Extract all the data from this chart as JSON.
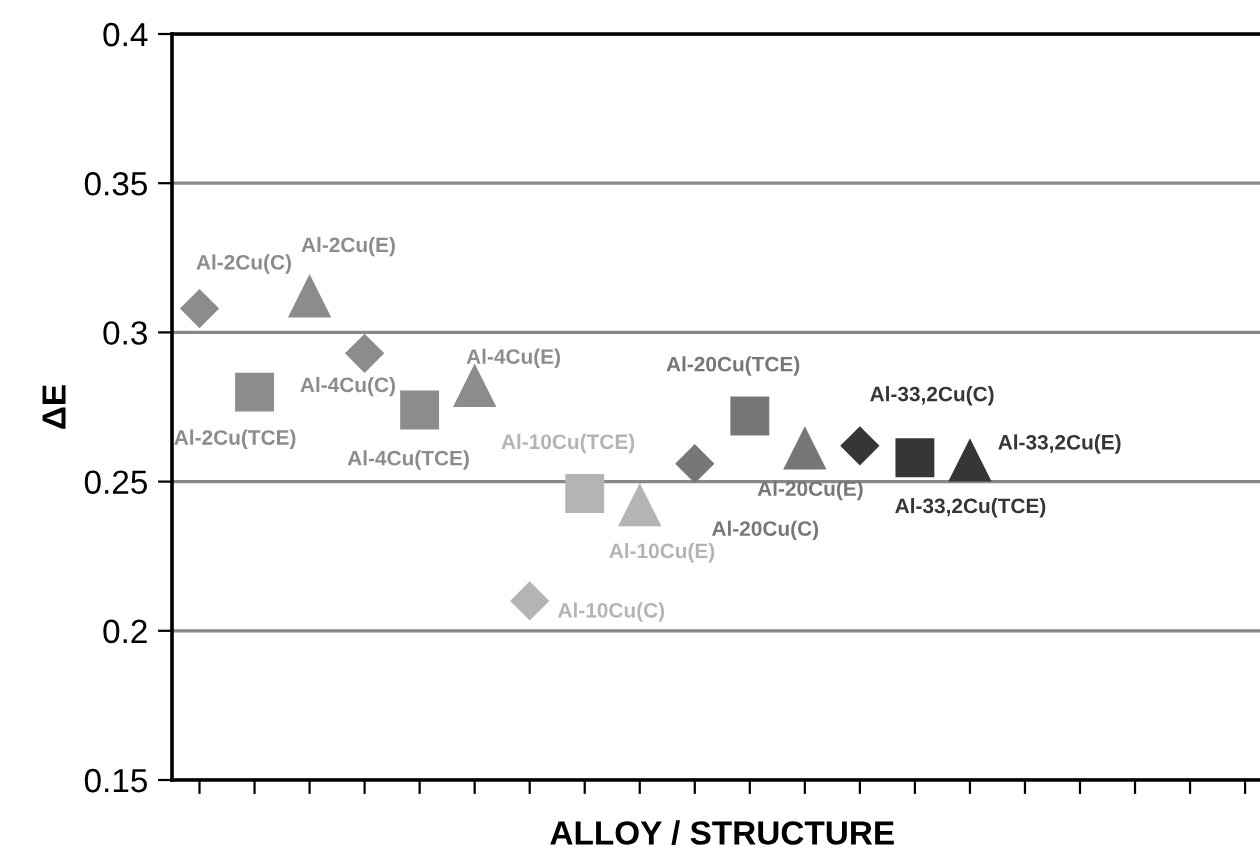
{
  "chart_data": {
    "type": "scatter",
    "xlabel": "ALLOY / STRUCTURE",
    "ylabel": "ΔE",
    "categories": [
      null,
      null,
      null,
      null,
      null,
      null,
      null,
      null,
      null,
      null,
      null,
      null,
      null,
      null,
      null,
      null,
      null,
      null,
      null,
      null
    ],
    "ylim": [
      0.15,
      0.4
    ],
    "yticks": [
      0.15,
      0.2,
      0.25,
      0.3,
      0.35,
      0.4
    ],
    "grid": "y",
    "legend": false,
    "series": [
      {
        "name": "Al-2Cu(C)",
        "color": "#8c8c8c",
        "marker": "diamond",
        "values": [
          0.308,
          null,
          null,
          null,
          null,
          null,
          null,
          null,
          null,
          null,
          null,
          null,
          null,
          null,
          null,
          null,
          null,
          null,
          null,
          null
        ]
      },
      {
        "name": "Al-2Cu(TCE)",
        "color": "#8c8c8c",
        "marker": "square",
        "values": [
          null,
          0.28,
          null,
          null,
          null,
          null,
          null,
          null,
          null,
          null,
          null,
          null,
          null,
          null,
          null,
          null,
          null,
          null,
          null,
          null
        ]
      },
      {
        "name": "Al-2Cu(E)",
        "color": "#8c8c8c",
        "marker": "triangle",
        "values": [
          null,
          null,
          0.312,
          null,
          null,
          null,
          null,
          null,
          null,
          null,
          null,
          null,
          null,
          null,
          null,
          null,
          null,
          null,
          null,
          null
        ]
      },
      {
        "name": "Al-4Cu(C)",
        "color": "#8c8c8c",
        "marker": "diamond",
        "values": [
          null,
          null,
          null,
          0.293,
          null,
          null,
          null,
          null,
          null,
          null,
          null,
          null,
          null,
          null,
          null,
          null,
          null,
          null,
          null,
          null
        ]
      },
      {
        "name": "Al-4Cu(TCE)",
        "color": "#8c8c8c",
        "marker": "square",
        "values": [
          null,
          null,
          null,
          null,
          0.274,
          null,
          null,
          null,
          null,
          null,
          null,
          null,
          null,
          null,
          null,
          null,
          null,
          null,
          null,
          null
        ]
      },
      {
        "name": "Al-4Cu(E)",
        "color": "#8c8c8c",
        "marker": "triangle",
        "values": [
          null,
          null,
          null,
          null,
          null,
          0.282,
          null,
          null,
          null,
          null,
          null,
          null,
          null,
          null,
          null,
          null,
          null,
          null,
          null,
          null
        ]
      },
      {
        "name": "Al-10Cu(C)",
        "color": "#b4b4b4",
        "marker": "diamond",
        "values": [
          null,
          null,
          null,
          null,
          null,
          null,
          0.21,
          null,
          null,
          null,
          null,
          null,
          null,
          null,
          null,
          null,
          null,
          null,
          null,
          null
        ]
      },
      {
        "name": "Al-10Cu(TCE)",
        "color": "#b4b4b4",
        "marker": "square",
        "values": [
          null,
          null,
          null,
          null,
          null,
          null,
          null,
          0.246,
          null,
          null,
          null,
          null,
          null,
          null,
          null,
          null,
          null,
          null,
          null,
          null
        ]
      },
      {
        "name": "Al-10Cu(E)",
        "color": "#b4b4b4",
        "marker": "triangle",
        "values": [
          null,
          null,
          null,
          null,
          null,
          null,
          null,
          null,
          0.242,
          null,
          null,
          null,
          null,
          null,
          null,
          null,
          null,
          null,
          null,
          null
        ]
      },
      {
        "name": "Al-20Cu(C)",
        "color": "#777777",
        "marker": "diamond",
        "values": [
          null,
          null,
          null,
          null,
          null,
          null,
          null,
          null,
          null,
          0.256,
          null,
          null,
          null,
          null,
          null,
          null,
          null,
          null,
          null,
          null
        ]
      },
      {
        "name": "Al-20Cu(TCE)",
        "color": "#777777",
        "marker": "square",
        "values": [
          null,
          null,
          null,
          null,
          null,
          null,
          null,
          null,
          null,
          null,
          0.272,
          null,
          null,
          null,
          null,
          null,
          null,
          null,
          null,
          null
        ]
      },
      {
        "name": "Al-20Cu(E)",
        "color": "#777777",
        "marker": "triangle",
        "values": [
          null,
          null,
          null,
          null,
          null,
          null,
          null,
          null,
          null,
          null,
          null,
          0.261,
          null,
          null,
          null,
          null,
          null,
          null,
          null,
          null
        ]
      },
      {
        "name": "Al-33,2Cu(C)",
        "color": "#363636",
        "marker": "diamond",
        "values": [
          null,
          null,
          null,
          null,
          null,
          null,
          null,
          null,
          null,
          null,
          null,
          null,
          0.262,
          null,
          null,
          null,
          null,
          null,
          null,
          null
        ]
      },
      {
        "name": "Al-33,2Cu(TCE)",
        "color": "#363636",
        "marker": "square",
        "values": [
          null,
          null,
          null,
          null,
          null,
          null,
          null,
          null,
          null,
          null,
          null,
          null,
          null,
          0.258,
          null,
          null,
          null,
          null,
          null,
          null
        ]
      },
      {
        "name": "Al-33,2Cu(E)",
        "color": "#363636",
        "marker": "triangle",
        "values": [
          null,
          null,
          null,
          null,
          null,
          null,
          null,
          null,
          null,
          null,
          null,
          null,
          null,
          null,
          0.257,
          null,
          null,
          null,
          null,
          null
        ]
      }
    ]
  }
}
